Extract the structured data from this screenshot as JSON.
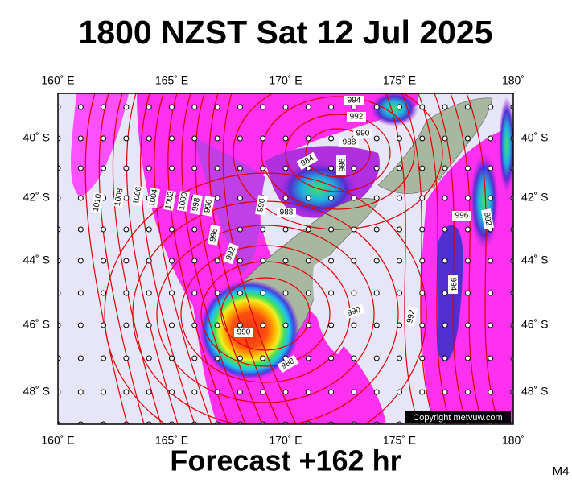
{
  "title": "1800 NZST Sat 12 Jul 2025",
  "longitude_labels": [
    "160˚ E",
    "165˚ E",
    "170˚ E",
    "175˚ E",
    "180˚"
  ],
  "latitude_labels": [
    "40˚ S",
    "42˚ S",
    "44˚ S",
    "46˚ S",
    "48˚ S"
  ],
  "isobar_labels": [
    "994",
    "992",
    "990",
    "988",
    "984",
    "986",
    "1010",
    "1008",
    "1006",
    "1004",
    "1002",
    "1000",
    "998",
    "996",
    "996",
    "992",
    "988",
    "996",
    "990",
    "988",
    "990",
    "992",
    "994",
    "996",
    "992"
  ],
  "copyright": "Copyright metvuw.com",
  "footer": "Forecast +162 hr",
  "model": "M4"
}
